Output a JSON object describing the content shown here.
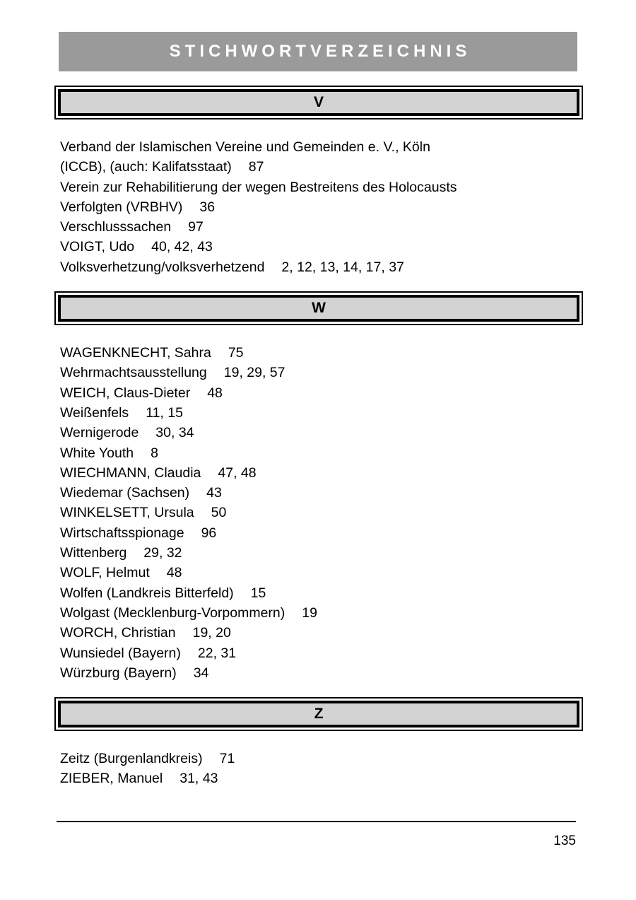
{
  "header": {
    "title": "STICHWORTVERZEICHNIS"
  },
  "sections": [
    {
      "letter": "V",
      "entries": [
        {
          "lines": [
            "Verband der Islamischen Vereine und Gemeinden e. V., Köln",
            "(ICCB), (auch: Kalifatsstaat)"
          ],
          "pages": "87"
        },
        {
          "lines": [
            "Verein zur Rehabilitierung der wegen Bestreitens des Holocausts",
            "Verfolgten (VRBHV)"
          ],
          "pages": "36"
        },
        {
          "lines": [
            "Verschlusssachen"
          ],
          "pages": "97"
        },
        {
          "lines": [
            "VOIGT, Udo"
          ],
          "pages": "40, 42, 43"
        },
        {
          "lines": [
            "Volksverhetzung/volksverhetzend"
          ],
          "pages": "2, 12, 13, 14, 17, 37"
        }
      ]
    },
    {
      "letter": "W",
      "entries": [
        {
          "lines": [
            "WAGENKNECHT, Sahra"
          ],
          "pages": "75"
        },
        {
          "lines": [
            "Wehrmachtsausstellung"
          ],
          "pages": "19, 29, 57"
        },
        {
          "lines": [
            "WEICH, Claus-Dieter"
          ],
          "pages": "48"
        },
        {
          "lines": [
            "Weißenfels"
          ],
          "pages": "11, 15"
        },
        {
          "lines": [
            "Wernigerode"
          ],
          "pages": "30, 34"
        },
        {
          "lines": [
            "White Youth"
          ],
          "pages": "8"
        },
        {
          "lines": [
            "WIECHMANN, Claudia"
          ],
          "pages": "47, 48"
        },
        {
          "lines": [
            "Wiedemar (Sachsen)"
          ],
          "pages": "43"
        },
        {
          "lines": [
            "WINKELSETT, Ursula"
          ],
          "pages": "50"
        },
        {
          "lines": [
            "Wirtschaftsspionage"
          ],
          "pages": "96"
        },
        {
          "lines": [
            "Wittenberg"
          ],
          "pages": "29, 32"
        },
        {
          "lines": [
            "WOLF, Helmut"
          ],
          "pages": "48"
        },
        {
          "lines": [
            "Wolfen (Landkreis Bitterfeld)"
          ],
          "pages": "15"
        },
        {
          "lines": [
            "Wolgast (Mecklenburg-Vorpommern)"
          ],
          "pages": "19"
        },
        {
          "lines": [
            "WORCH, Christian"
          ],
          "pages": "19, 20"
        },
        {
          "lines": [
            "Wunsiedel (Bayern)"
          ],
          "pages": "22, 31"
        },
        {
          "lines": [
            "Würzburg (Bayern)"
          ],
          "pages": "34"
        }
      ]
    },
    {
      "letter": "Z",
      "entries": [
        {
          "lines": [
            "Zeitz (Burgenlandkreis)"
          ],
          "pages": "71"
        },
        {
          "lines": [
            "ZIEBER, Manuel"
          ],
          "pages": "31, 43"
        }
      ]
    }
  ],
  "footer": {
    "page_number": "135"
  },
  "colors": {
    "header_bar_bg": "#9a9a9a",
    "header_bar_text": "#ffffff",
    "section_box_bg": "#d3d3d3",
    "text": "#000000"
  }
}
